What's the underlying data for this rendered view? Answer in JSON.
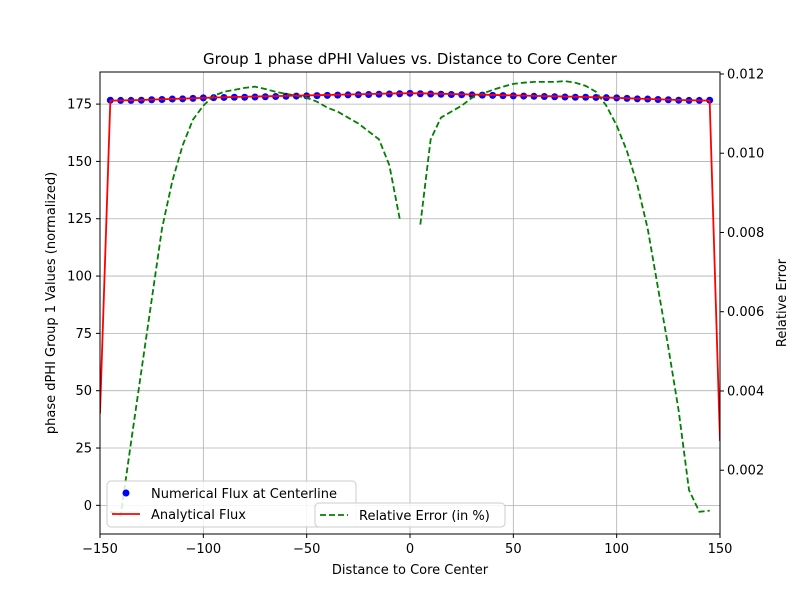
{
  "chart_data": {
    "type": "line",
    "title": "Group 1 phase dPHI Values vs. Distance to Core Center",
    "xlabel": "Distance to Core Center",
    "ylabel": "phase dPHI Group 1 Values (normalized)",
    "y2label": "Relative Error",
    "xlim": [
      -150,
      150
    ],
    "ylim": [
      -12.5,
      189
    ],
    "y2lim": [
      0.00039,
      0.01205
    ],
    "xticks": [
      -150,
      -100,
      -50,
      0,
      50,
      100,
      150
    ],
    "yticks": [
      0,
      25,
      50,
      75,
      100,
      125,
      150,
      175
    ],
    "y2ticks": [
      0.002,
      0.004,
      0.006,
      0.008,
      0.01,
      0.012
    ],
    "xtick_labels": [
      "−150",
      "−100",
      "−50",
      "0",
      "50",
      "100",
      "150"
    ],
    "ytick_labels": [
      "0",
      "25",
      "50",
      "75",
      "100",
      "125",
      "150",
      "175"
    ],
    "y2tick_labels": [
      "0.002",
      "0.004",
      "0.006",
      "0.008",
      "0.010",
      "0.012"
    ],
    "grid": true,
    "colors": {
      "numerical": "#0000ff",
      "analytical": "#ff0000",
      "error": "#008000"
    },
    "legend": {
      "placement": "lower-left",
      "entries": [
        "Numerical Flux at Centerline",
        "Analytical Flux"
      ],
      "secondary_placement": "lower-center",
      "secondary_entries": [
        "Relative Error (in %)"
      ]
    },
    "series": [
      {
        "name": "Numerical Flux at Centerline",
        "style": "markers",
        "axis": "left",
        "x": [
          -145,
          -140,
          -135,
          -130,
          -125,
          -120,
          -115,
          -110,
          -105,
          -100,
          -95,
          -90,
          -85,
          -80,
          -75,
          -70,
          -65,
          -60,
          -55,
          -50,
          -45,
          -40,
          -35,
          -30,
          -25,
          -20,
          -15,
          -10,
          -5,
          0,
          5,
          10,
          15,
          20,
          25,
          30,
          35,
          40,
          45,
          50,
          55,
          60,
          65,
          70,
          75,
          80,
          85,
          90,
          95,
          100,
          105,
          110,
          115,
          120,
          125,
          130,
          135,
          140,
          145
        ],
        "y": [
          176.7,
          176.6,
          176.6,
          176.7,
          176.9,
          177.0,
          177.2,
          177.3,
          177.5,
          177.7,
          177.8,
          177.9,
          178.0,
          178.0,
          178.1,
          178.2,
          178.3,
          178.4,
          178.5,
          178.6,
          178.7,
          178.8,
          178.9,
          179.0,
          179.1,
          179.2,
          179.3,
          179.4,
          179.5,
          179.7,
          179.5,
          179.4,
          179.3,
          179.2,
          179.1,
          179.0,
          178.9,
          178.8,
          178.7,
          178.6,
          178.5,
          178.4,
          178.3,
          178.2,
          178.1,
          178.0,
          178.0,
          177.9,
          177.8,
          177.7,
          177.5,
          177.3,
          177.2,
          177.0,
          176.9,
          176.7,
          176.6,
          176.6,
          176.7
        ]
      },
      {
        "name": "Analytical Flux",
        "style": "solid",
        "axis": "left",
        "x": [
          -150,
          -145,
          -140,
          -130,
          -120,
          -110,
          -100,
          -90,
          -80,
          -70,
          -60,
          -50,
          -40,
          -30,
          -20,
          -10,
          -5,
          0,
          5,
          10,
          20,
          30,
          40,
          50,
          60,
          70,
          80,
          90,
          100,
          110,
          120,
          130,
          140,
          145,
          150
        ],
        "y": [
          40,
          176.5,
          176.6,
          176.8,
          177.1,
          177.4,
          177.7,
          178.0,
          178.2,
          178.4,
          178.6,
          178.8,
          179.0,
          179.2,
          179.4,
          179.6,
          179.7,
          179.7,
          179.7,
          179.6,
          179.4,
          179.2,
          179.0,
          178.8,
          178.6,
          178.4,
          178.2,
          178.0,
          177.7,
          177.4,
          177.1,
          176.8,
          176.6,
          176.5,
          28
        ]
      },
      {
        "name": "Relative Error (in %)",
        "style": "dashed",
        "axis": "right",
        "x": [
          -145,
          -140,
          -135,
          -130,
          -125,
          -120,
          -115,
          -110,
          -105,
          -100,
          -95,
          -90,
          -85,
          -80,
          -75,
          -70,
          -65,
          -60,
          -55,
          -50,
          -45,
          -40,
          -35,
          -30,
          -25,
          -20,
          -15,
          -10,
          -5
        ],
        "y": [
          0.00095,
          0.00085,
          0.0027,
          0.0045,
          0.0063,
          0.0081,
          0.0093,
          0.0102,
          0.01085,
          0.0112,
          0.01145,
          0.01155,
          0.0116,
          0.01165,
          0.01168,
          0.01162,
          0.01155,
          0.0115,
          0.01145,
          0.0114,
          0.0113,
          0.01115,
          0.01105,
          0.0109,
          0.01075,
          0.01055,
          0.01035,
          0.0097,
          0.00835
        ]
      },
      {
        "name": "Relative Error (in %)",
        "style": "dashed",
        "axis": "right",
        "x": [
          5,
          10,
          15,
          20,
          25,
          30,
          35,
          40,
          45,
          50,
          55,
          60,
          65,
          70,
          75,
          80,
          85,
          90,
          95,
          100,
          105,
          110,
          115,
          120,
          125,
          130,
          135,
          140,
          145
        ],
        "y": [
          0.0082,
          0.01035,
          0.0109,
          0.01105,
          0.0112,
          0.0114,
          0.0115,
          0.0116,
          0.01168,
          0.01175,
          0.01178,
          0.0118,
          0.0118,
          0.0118,
          0.01182,
          0.01178,
          0.0117,
          0.01155,
          0.0112,
          0.0107,
          0.01005,
          0.0092,
          0.0081,
          0.0066,
          0.0051,
          0.0035,
          0.0015,
          0.00095,
          0.00098
        ]
      }
    ]
  }
}
